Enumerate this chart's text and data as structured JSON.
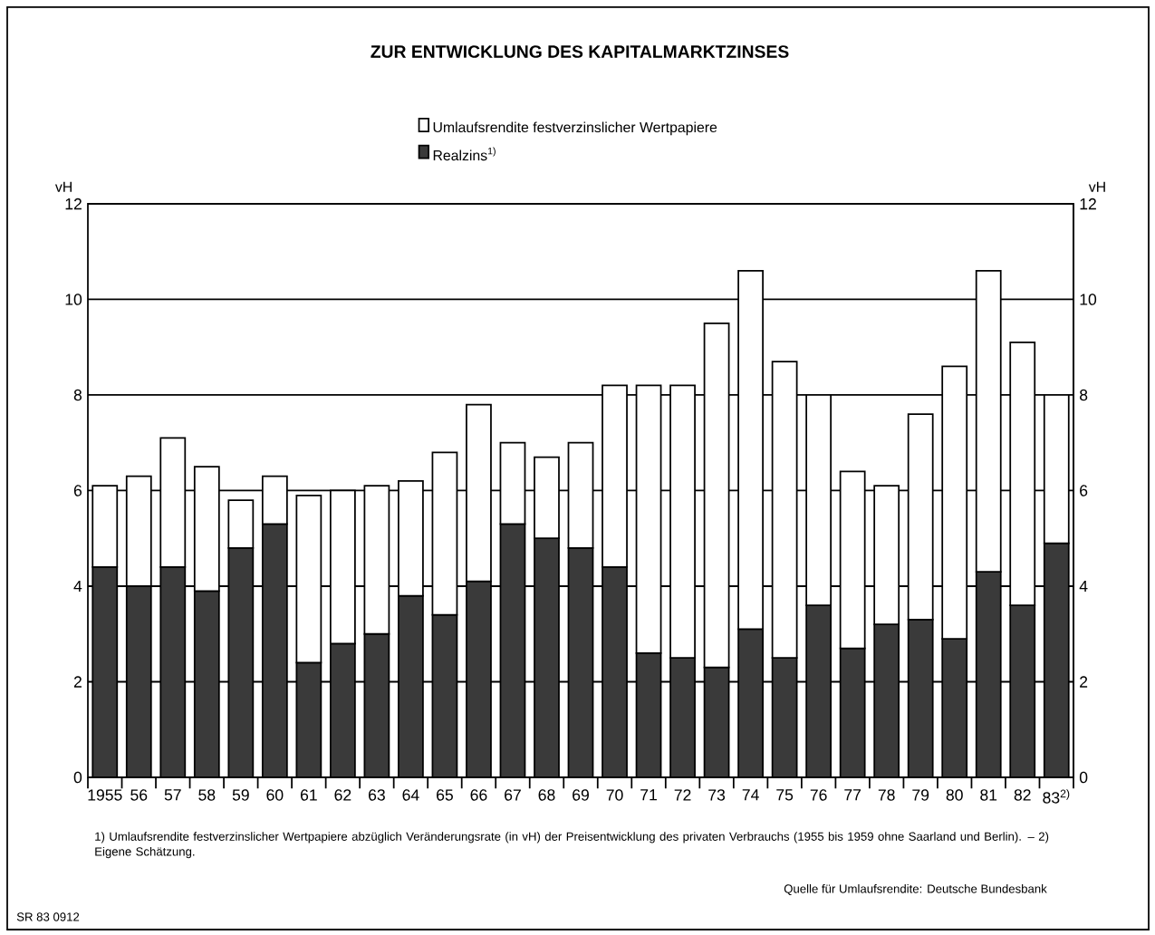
{
  "chart_data": {
    "type": "bar",
    "title": "ZUR ENTWICKLUNG DES KAPITALMARKTZINSES",
    "categories": [
      "1955",
      "56",
      "57",
      "58",
      "59",
      "60",
      "61",
      "62",
      "63",
      "64",
      "65",
      "66",
      "67",
      "68",
      "69",
      "70",
      "71",
      "72",
      "73",
      "74",
      "75",
      "76",
      "77",
      "78",
      "79",
      "80",
      "81",
      "82",
      "83$^{2)}$"
    ],
    "series": [
      {
        "name": "Realzins$^{1)}$",
        "color": "#3a3a3a",
        "values": [
          4.4,
          4.0,
          4.4,
          3.9,
          4.8,
          5.3,
          2.4,
          2.8,
          3.0,
          3.8,
          3.4,
          4.1,
          5.3,
          5.0,
          4.8,
          4.4,
          2.6,
          2.5,
          2.3,
          3.1,
          2.5,
          3.6,
          2.7,
          3.2,
          3.3,
          2.9,
          4.3,
          3.6,
          4.9
        ]
      },
      {
        "name": "Umlaufsrendite festverzinslicher Wertpapiere",
        "color": "#ffffff",
        "values": [
          1.7,
          2.3,
          2.7,
          2.6,
          1.0,
          1.0,
          3.5,
          3.2,
          3.1,
          2.4,
          3.4,
          3.7,
          1.7,
          1.7,
          2.2,
          3.8,
          5.6,
          5.7,
          7.2,
          7.5,
          6.2,
          4.4,
          3.7,
          2.9,
          4.3,
          5.7,
          6.3,
          5.5,
          3.1
        ]
      }
    ],
    "stacked": true,
    "ylabel": "vH",
    "y2label": "vH",
    "ylim": [
      0,
      12
    ],
    "yticks": [
      0,
      2,
      4,
      6,
      8,
      10,
      12
    ],
    "y2lim": [
      0,
      12
    ],
    "y2ticks": [
      0,
      2,
      4,
      6,
      8,
      10,
      12
    ],
    "grid": "y",
    "legend": "top",
    "annotations": [
      "1) Umlaufsrendite festverzinslicher Wertpapiere abzüglich Veränderungsrate (in vH) der Preisentwicklung des privaten Verbrauchs (1955 bis 1959 ohne Saarland und Berlin). – 2) Eigene Schätzung.",
      "Quelle für Umlaufsrendite: Deutsche Bundesbank",
      "SR 83 0912"
    ]
  }
}
